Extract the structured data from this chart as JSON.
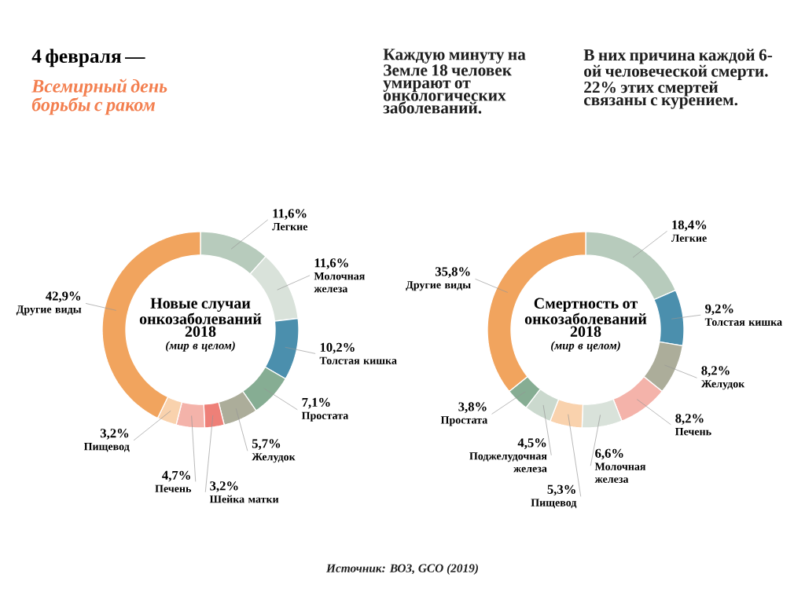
{
  "chart_data": [
    {
      "type": "donut",
      "title": "Новые случаи онкозаболеваний 2018",
      "subtitle": "(мир в целом)",
      "categories": [
        "Легкие",
        "Молочная железа",
        "Толстая кишка",
        "Простата",
        "Желудок",
        "Шейка матки",
        "Печень",
        "Пищевод",
        "Другие виды"
      ],
      "values": [
        11.6,
        11.6,
        10.2,
        7.1,
        5.7,
        3.2,
        4.7,
        3.2,
        42.9
      ],
      "value_labels": [
        "11,6%",
        "11,6%",
        "10,2%",
        "7,1%",
        "5,7%",
        "3,2%",
        "4,7%",
        "3,2%",
        "42,9%"
      ],
      "colors": [
        "#b7cbbc",
        "#d9e2da",
        "#4b8fad",
        "#86ad93",
        "#acad9a",
        "#ee8078",
        "#f4b3aa",
        "#f9d2ad",
        "#f1a45e"
      ],
      "annotations": [
        "4 февраля —",
        "Всемирный день борьбы с раком",
        "Каждую минуту на Земле 18 человек умирают от онкологических заболеваний.",
        "В них причина каждой 6-ой человеческой смерти. 22% этих смертей связаны с курением.",
        "Источник: ВОЗ, GCO (2019)"
      ]
    },
    {
      "type": "donut",
      "title": "Смертность от онкозаболеваний 2018",
      "subtitle": "(мир в целом)",
      "categories": [
        "Легкие",
        "Толстая кишка",
        "Желудок",
        "Печень",
        "Молочная железа",
        "Пищевод",
        "Поджелудочная железа",
        "Простата",
        "Другие виды"
      ],
      "values": [
        18.4,
        9.2,
        8.2,
        8.2,
        6.6,
        5.3,
        4.5,
        3.8,
        35.8
      ],
      "value_labels": [
        "18,4%",
        "9,2%",
        "8,2%",
        "8,2%",
        "6,6%",
        "5,3%",
        "4,5%",
        "3,8%",
        "35,8%"
      ],
      "colors": [
        "#b7cbbc",
        "#4b8fad",
        "#acad9a",
        "#f4b3aa",
        "#d9e2da",
        "#f9d2ad",
        "#cbd9ce",
        "#86ad93",
        "#f1a45e"
      ]
    }
  ]
}
